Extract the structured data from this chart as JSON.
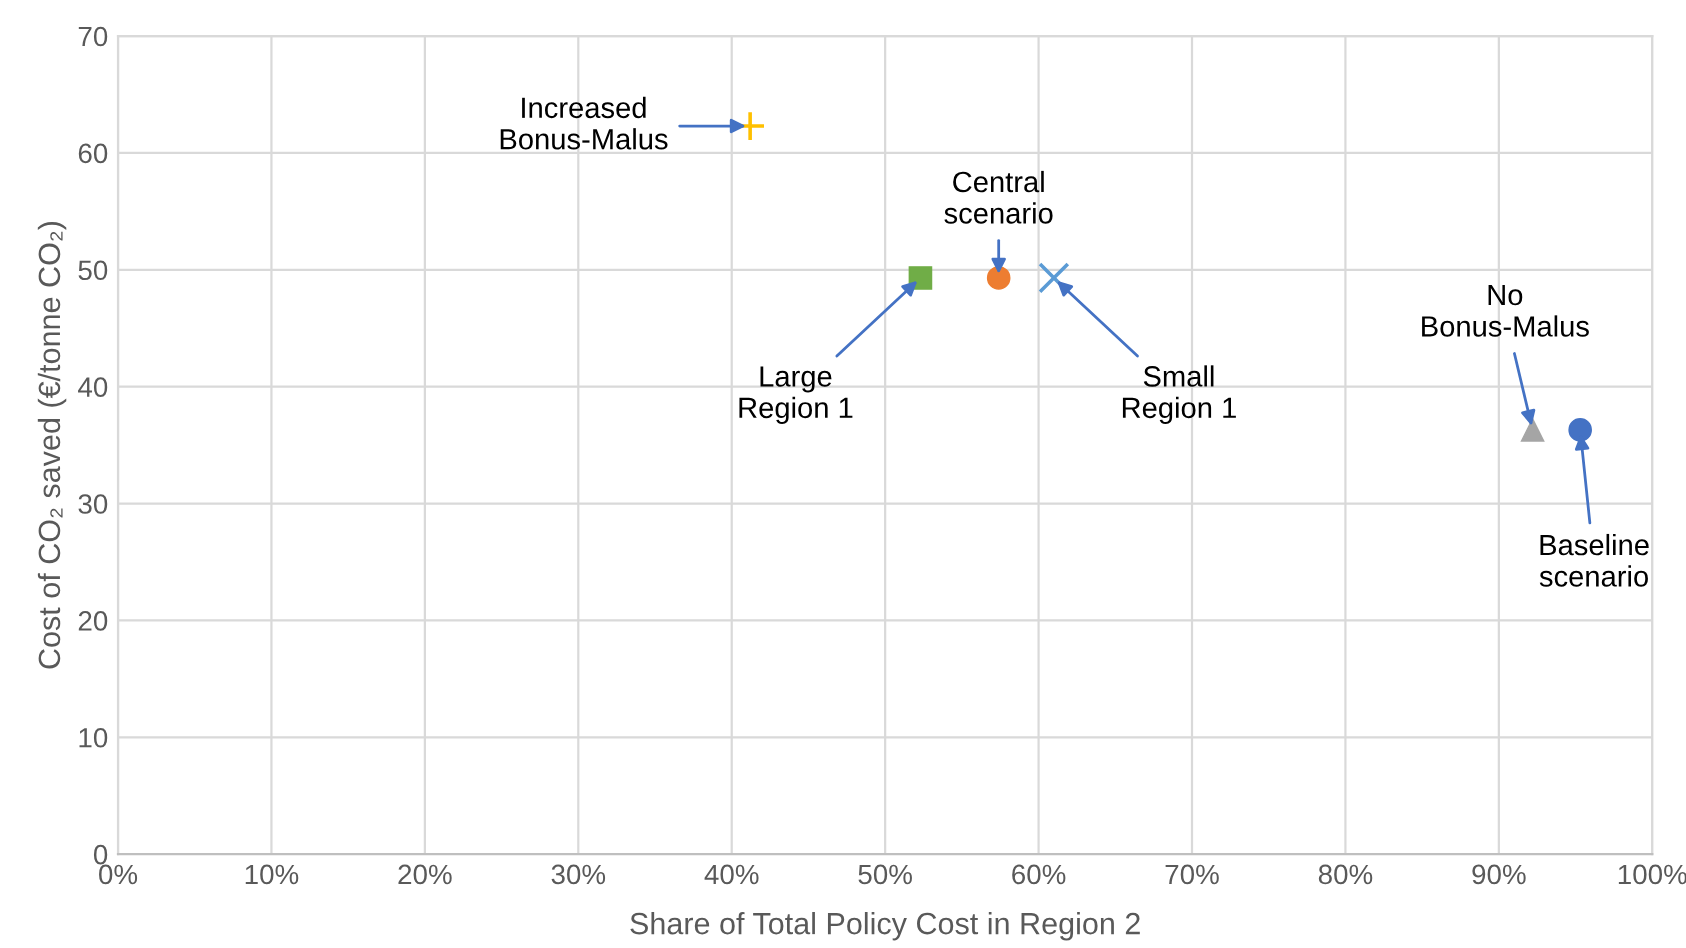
{
  "chart_data": {
    "type": "scatter",
    "xlabel": "Share of Total Policy Cost in Region 2",
    "ylabel": "Cost of CO₂ saved (€/tonne CO₂)",
    "xlim": [
      0,
      100
    ],
    "xticks": [
      {
        "value": 0,
        "label": "0%"
      },
      {
        "value": 10,
        "label": "10%"
      },
      {
        "value": 20,
        "label": "20%"
      },
      {
        "value": 30,
        "label": "30%"
      },
      {
        "value": 40,
        "label": "40%"
      },
      {
        "value": 50,
        "label": "50%"
      },
      {
        "value": 60,
        "label": "60%"
      },
      {
        "value": 70,
        "label": "70%"
      },
      {
        "value": 80,
        "label": "80%"
      },
      {
        "value": 90,
        "label": "90%"
      },
      {
        "value": 100,
        "label": "100%"
      }
    ],
    "ylim": [
      0,
      70
    ],
    "yticks": [
      0,
      10,
      20,
      30,
      40,
      50,
      60,
      70
    ],
    "grid": true,
    "series": [
      {
        "color": "#ffc000",
        "marker": "cross",
        "x": [
          41.2
        ],
        "values": [
          62.3
        ]
      },
      {
        "color": "#ed7d31",
        "marker": "circle",
        "x": [
          57.4
        ],
        "values": [
          49.3
        ]
      },
      {
        "color": "#70ad47",
        "marker": "square",
        "x": [
          52.3
        ],
        "values": [
          49.3
        ]
      },
      {
        "color": "#5b9bd5",
        "marker": "x",
        "x": [
          61.0
        ],
        "values": [
          49.3
        ]
      },
      {
        "color": "#a5a5a5",
        "marker": "triangle",
        "x": [
          92.2
        ],
        "values": [
          36.3
        ]
      },
      {
        "color": "#4472c4",
        "marker": "circle",
        "x": [
          95.3
        ],
        "values": [
          36.3
        ]
      }
    ],
    "annotations": [
      {
        "text": "Increased\nBonus-Malus",
        "x": 41.2,
        "y": 62.3
      },
      {
        "text": "Central\nscenario",
        "x": 57.4,
        "y": 49.3
      },
      {
        "text": "Large\nRegion 1",
        "x": 52.3,
        "y": 49.3
      },
      {
        "text": "Small\nRegion 1",
        "x": 61.0,
        "y": 49.3
      },
      {
        "text": "No\nBonus-Malus",
        "x": 92.2,
        "y": 36.3
      },
      {
        "text": "Baseline\nscenario",
        "x": 95.3,
        "y": 36.3
      }
    ]
  }
}
